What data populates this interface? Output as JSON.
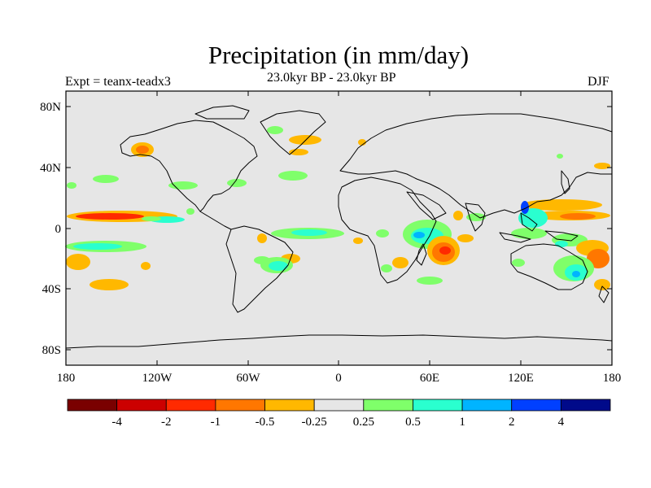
{
  "title": "Precipitation (in mm/day)",
  "experiment": "Expt = teanx-teadx3",
  "period": "23.0kyr BP - 23.0kyr BP",
  "season": "DJF",
  "axes": {
    "y_ticks": [
      "80N",
      "40N",
      "0",
      "40S",
      "80S"
    ],
    "x_ticks": [
      "180",
      "120W",
      "60W",
      "0",
      "60E",
      "120E",
      "180"
    ]
  },
  "colorbar": {
    "colors": [
      "#7a0000",
      "#cc0000",
      "#ff2a00",
      "#ff7700",
      "#ffb800",
      "#e6e6e6",
      "#7fff6a",
      "#2affcf",
      "#00b4ff",
      "#0040ff",
      "#000a8a"
    ],
    "labels": [
      "-4",
      "-2",
      "-1",
      "-0.5",
      "-0.25",
      "0.25",
      "0.5",
      "1",
      "2",
      "4"
    ]
  }
}
